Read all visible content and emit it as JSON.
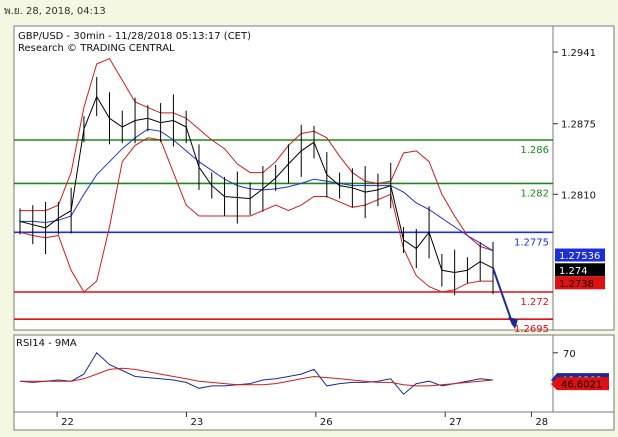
{
  "header": {
    "date_time": "พ.ย. 28, 2018, 04:13"
  },
  "chart_data": {
    "type": "line",
    "title": "GBP/USD - 30min - 11/28/2018 05:13:17 (CET)",
    "subtitle": "Research © TRADING CENTRAL",
    "price_axis": {
      "ticks": [
        "1.2941",
        "1.2875",
        "1.2810"
      ],
      "tick_values": [
        1.2941,
        1.2875,
        1.281
      ],
      "range": [
        1.2685,
        1.2965
      ]
    },
    "x_labels": [
      "22",
      "23",
      "26",
      "27",
      "28"
    ],
    "x_label_positions": [
      0.08,
      0.32,
      0.56,
      0.8,
      0.96
    ],
    "levels": [
      {
        "value": 1.286,
        "label": "1.286",
        "color": "#1a8a1a"
      },
      {
        "value": 1.282,
        "label": "1.282",
        "color": "#1a8a1a"
      },
      {
        "value": 1.2775,
        "label": "1.2775",
        "color": "#1c2fd6"
      },
      {
        "value": 1.272,
        "label": "1.272",
        "color": "#e01010"
      },
      {
        "value": 1.2695,
        "label": "1.2695",
        "color": "#e01010"
      }
    ],
    "price_tags": [
      {
        "label": "1.27536",
        "value": 1.27536,
        "bg": "#1c2fd6",
        "fg": "#ffffff"
      },
      {
        "label": "1.274",
        "value": 1.274,
        "bg": "#000000",
        "fg": "#ffffff"
      },
      {
        "label": "1.2738",
        "value": 1.2728,
        "bg": "#e01010",
        "fg": "#000000"
      }
    ],
    "close_series": [
      1.2785,
      1.2782,
      1.2779,
      1.2788,
      1.2795,
      1.287,
      1.29,
      1.288,
      1.2872,
      1.2878,
      1.288,
      1.2876,
      1.2878,
      1.2872,
      1.2835,
      1.2818,
      1.2808,
      1.2807,
      1.2806,
      1.2815,
      1.2825,
      1.2838,
      1.285,
      1.2858,
      1.2828,
      1.2818,
      1.2816,
      1.2812,
      1.2814,
      1.2818,
      1.2768,
      1.276,
      1.2775,
      1.274,
      1.2738,
      1.274,
      1.2748,
      1.2742
    ],
    "ma_series": [
      1.2785,
      1.2785,
      1.2784,
      1.2786,
      1.279,
      1.281,
      1.2828,
      1.284,
      1.2852,
      1.2862,
      1.287,
      1.2868,
      1.286,
      1.285,
      1.284,
      1.2832,
      1.2824,
      1.2818,
      1.2815,
      1.2814,
      1.2815,
      1.2817,
      1.282,
      1.2824,
      1.2822,
      1.282,
      1.2818,
      1.2818,
      1.2818,
      1.2818,
      1.2812,
      1.2802,
      1.2796,
      1.2788,
      1.278,
      1.2772,
      1.2765,
      1.2758
    ],
    "band_upper": [
      1.2795,
      1.2795,
      1.2795,
      1.28,
      1.283,
      1.289,
      1.293,
      1.2935,
      1.2915,
      1.2895,
      1.289,
      1.2885,
      1.2885,
      1.288,
      1.287,
      1.286,
      1.2852,
      1.2838,
      1.283,
      1.283,
      1.284,
      1.2855,
      1.2866,
      1.2868,
      1.2862,
      1.2845,
      1.283,
      1.2822,
      1.282,
      1.2822,
      1.2848,
      1.285,
      1.284,
      1.281,
      1.279,
      1.2772,
      1.2762,
      1.2758
    ],
    "band_lower": [
      1.2775,
      1.2772,
      1.277,
      1.2772,
      1.274,
      1.272,
      1.273,
      1.278,
      1.284,
      1.2855,
      1.2862,
      1.286,
      1.283,
      1.28,
      1.279,
      1.279,
      1.279,
      1.279,
      1.279,
      1.2795,
      1.28,
      1.2795,
      1.28,
      1.2808,
      1.2808,
      1.2803,
      1.2798,
      1.28,
      1.2805,
      1.281,
      1.276,
      1.2735,
      1.2725,
      1.272,
      1.2722,
      1.2728,
      1.273,
      1.273
    ],
    "forecast_arrow": {
      "from": 1.2742,
      "to": 1.2695
    },
    "rsi": {
      "label": "RSI14 - 9MA",
      "axis_tick": "70",
      "axis_tick_value": 70,
      "range": [
        20,
        85
      ],
      "series": [
        46,
        45,
        46,
        47,
        46,
        52,
        70,
        60,
        55,
        50,
        49,
        48,
        47,
        45,
        40,
        42,
        42,
        43,
        44,
        47,
        48,
        50,
        52,
        56,
        42,
        44,
        45,
        45,
        46,
        48,
        35,
        44,
        46,
        42,
        44,
        46,
        48,
        47
      ],
      "ma_series": [
        46,
        46,
        46,
        46,
        46,
        48,
        52,
        56,
        57,
        56,
        54,
        52,
        50,
        48,
        46,
        45,
        44,
        43,
        43,
        43,
        44,
        46,
        48,
        50,
        49,
        48,
        47,
        46,
        45,
        45,
        43,
        42,
        42,
        43,
        44,
        45,
        46,
        47
      ],
      "tags": [
        {
          "label": "46.9282",
          "value": 46.9282,
          "bg": "#1a2a9a",
          "fg": "#ffffff"
        },
        {
          "label": "46.6021",
          "value": 43.5,
          "bg": "#e01010",
          "fg": "#000000"
        }
      ]
    }
  }
}
